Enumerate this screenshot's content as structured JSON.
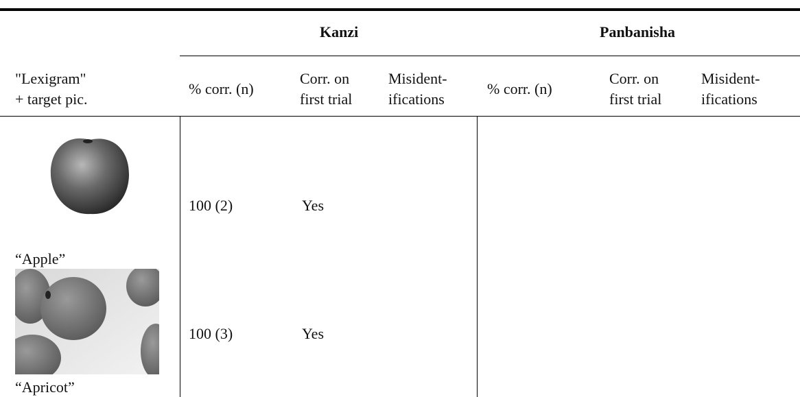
{
  "table": {
    "groups": [
      "Kanzi",
      "Panbanisha"
    ],
    "first_header": [
      "\"Lexigram\"",
      "+ target pic."
    ],
    "kanzi_columns": [
      [
        "% corr. (n)"
      ],
      [
        "Corr. on",
        "first trial"
      ],
      [
        "Misident-",
        "ifications"
      ]
    ],
    "panbanisha_columns": [
      [
        "% corr. (n)"
      ],
      [
        "Corr. on",
        "first trial"
      ],
      [
        "Misident-",
        "ifications"
      ]
    ],
    "rows": [
      {
        "label": "“Apple”",
        "kanzi_pct": "100 (2)",
        "kanzi_first": "Yes"
      },
      {
        "label": "“Apricot”",
        "kanzi_pct": "100 (3)",
        "kanzi_first": "Yes"
      }
    ]
  }
}
